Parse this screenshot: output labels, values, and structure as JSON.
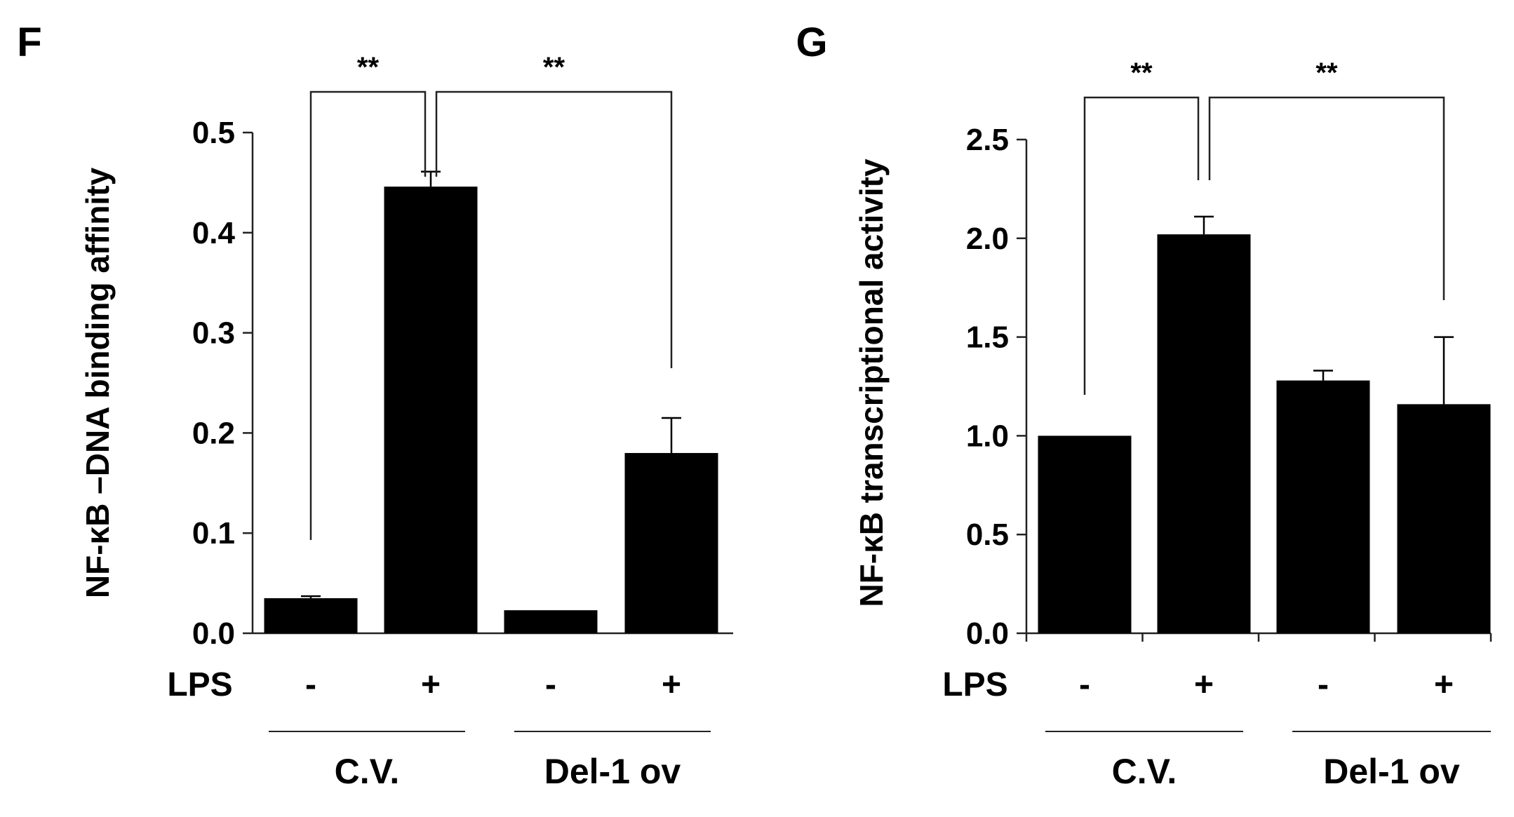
{
  "chart_data": [
    {
      "panel_label": "F",
      "type": "bar",
      "ylabel": "NF-κB –DNA binding affinity",
      "ylim": [
        0,
        0.5
      ],
      "yticks": [
        "0.0",
        "0.1",
        "0.2",
        "0.3",
        "0.4",
        "0.5"
      ],
      "ytick_values": [
        0,
        0.1,
        0.2,
        0.3,
        0.4,
        0.5
      ],
      "x_row_label": "LPS",
      "categories": [
        "-",
        "+",
        "-",
        "+"
      ],
      "values": [
        0.035,
        0.446,
        0.023,
        0.18
      ],
      "errors": [
        0.002,
        0.015,
        0.0,
        0.035
      ],
      "groups": [
        {
          "label": "C.V.",
          "members": [
            0,
            1
          ]
        },
        {
          "label": "Del-1 ov",
          "members": [
            2,
            3
          ]
        }
      ],
      "significance": [
        {
          "from": 0,
          "to": 1,
          "label": "**"
        },
        {
          "from": 1,
          "to": 3,
          "label": "**"
        }
      ]
    },
    {
      "panel_label": "G",
      "type": "bar",
      "ylabel": "NF-κB  transcriptional activity",
      "ylim": [
        0,
        2.5
      ],
      "yticks": [
        "0.0",
        "0.5",
        "1.0",
        "1.5",
        "2.0",
        "2.5"
      ],
      "ytick_values": [
        0,
        0.5,
        1.0,
        1.5,
        2.0,
        2.5
      ],
      "x_row_label": "LPS",
      "categories": [
        "-",
        "+",
        "-",
        "+"
      ],
      "values": [
        1.0,
        2.02,
        1.28,
        1.16
      ],
      "errors": [
        0.0,
        0.09,
        0.05,
        0.34
      ],
      "groups": [
        {
          "label": "C.V.",
          "members": [
            0,
            1
          ]
        },
        {
          "label": "Del-1 ov",
          "members": [
            2,
            3
          ]
        }
      ],
      "significance": [
        {
          "from": 0,
          "to": 1,
          "label": "**"
        },
        {
          "from": 1,
          "to": 3,
          "label": "**"
        }
      ]
    }
  ]
}
